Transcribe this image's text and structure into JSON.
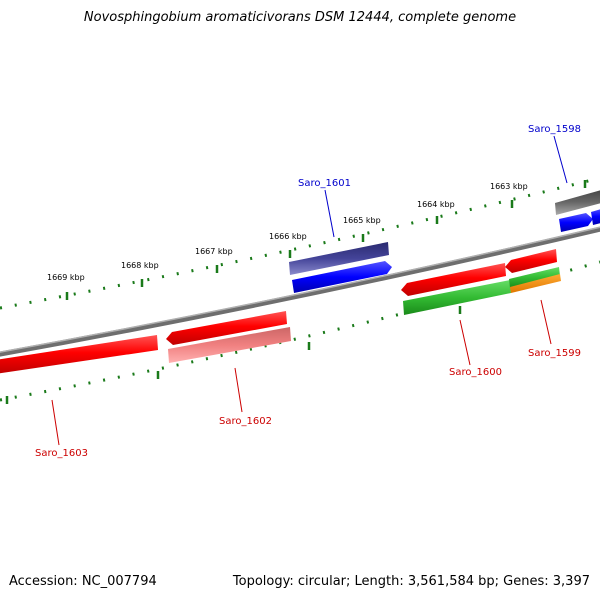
{
  "title": "Novosphingobium aromaticivorans DSM 12444, complete genome",
  "footer": {
    "accession": "Accession: NC_007794",
    "summary": "Topology: circular; Length: 3,561,584 bp; Genes: 3,397"
  },
  "ticks": [
    "1669 kbp",
    "1668 kbp",
    "1667 kbp",
    "1666 kbp",
    "1665 kbp",
    "1664 kbp",
    "1663 kbp"
  ],
  "genes": {
    "saro_1598": "Saro_1598",
    "saro_1599": "Saro_1599",
    "saro_1600": "Saro_1600",
    "saro_1601": "Saro_1601",
    "saro_1602": "Saro_1602",
    "saro_1603": "Saro_1603"
  },
  "colors": {
    "forward_label": "#0000cc",
    "reverse_label": "#cc0000",
    "tick_line": "#1a7a1a",
    "backbone": "#808080"
  }
}
